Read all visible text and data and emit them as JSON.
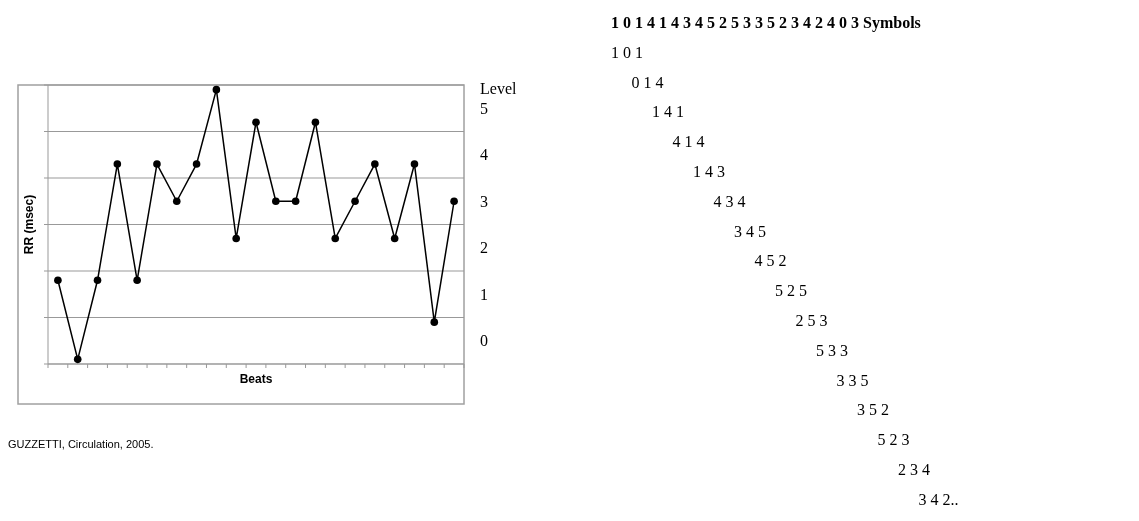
{
  "chart_data": {
    "type": "line",
    "xlabel": "Beats",
    "ylabel": "RR (msec)",
    "y2label": "Level",
    "categories": [
      null,
      null,
      null,
      null,
      null,
      null,
      null,
      null,
      null,
      null,
      null,
      null,
      null,
      null,
      null,
      null,
      null,
      null,
      null,
      null,
      null
    ],
    "series": [
      {
        "color": "#000000",
        "values": [
          1.3,
          -0.4,
          1.3,
          3.8,
          1.3,
          3.8,
          3.0,
          3.8,
          5.4,
          2.2,
          4.7,
          3.0,
          3.0,
          4.7,
          2.2,
          3.0,
          3.8,
          2.2,
          3.8,
          0.4,
          3.0
        ]
      }
    ],
    "ylim": [
      -0.5,
      5.5
    ],
    "yticks": [
      0,
      1,
      2,
      3,
      4,
      5
    ],
    "grid": "y",
    "marker": "circle",
    "line_style": "solid",
    "annotations": [
      "1 0 1 4 1 4 3 4 5 2 5 3 3 5 2 3 4 2 4 0 3 Symbols",
      "1 0 1",
      "0 1 4",
      "1 4 1",
      "4 1 4",
      "1 4 3",
      "4 3 4",
      "3 4 5",
      "4 5 2",
      "5 2 5",
      "2 5 3",
      "5 3 3",
      "3 3 5",
      "3 5 2",
      "5 2 3",
      "2 3 4",
      "3 4 2..",
      "GUZZETTI, Circulation, 2005."
    ]
  }
}
